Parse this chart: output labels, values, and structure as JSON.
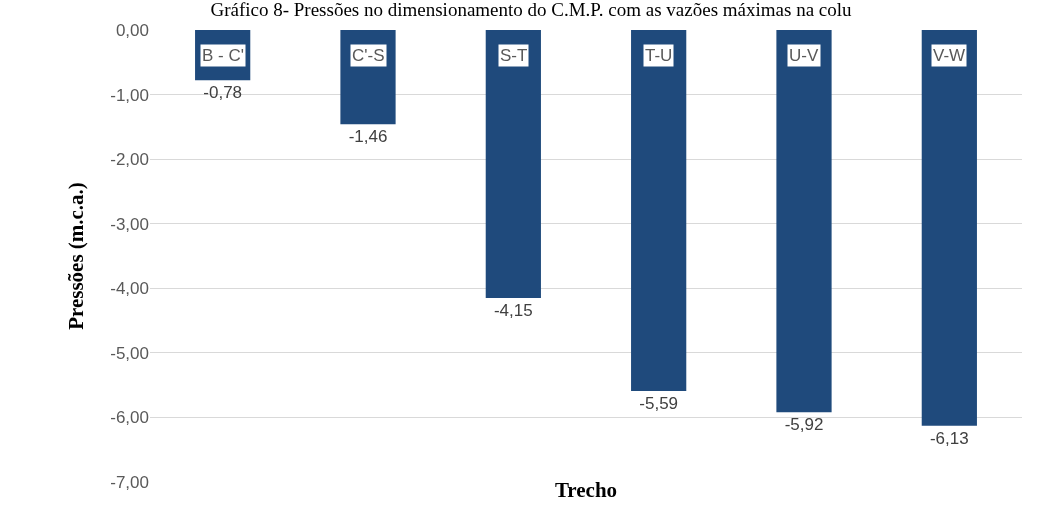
{
  "chart_data": {
    "type": "bar",
    "title": "Gráfico 8- Pressões no dimensionamento do C.M.P. com as vazões máximas na colu",
    "xlabel": "Trecho",
    "ylabel": "Pressões (m.c.a.)",
    "categories": [
      "B - C'",
      "C'-S",
      "S-T",
      "T-U",
      "U-V",
      "V-W"
    ],
    "values": [
      -0.78,
      -1.46,
      -4.15,
      -5.59,
      -5.92,
      -6.13
    ],
    "value_labels": [
      "-0,78",
      "-1,46",
      "-4,15",
      "-5,59",
      "-5,92",
      "-6,13"
    ],
    "color": "#1f4a7c",
    "ylim": [
      -7,
      0
    ],
    "yticks": [
      {
        "value": 0,
        "label": "0,00"
      },
      {
        "value": -1,
        "label": "-1,00"
      },
      {
        "value": -2,
        "label": "-2,00"
      },
      {
        "value": -3,
        "label": "-3,00"
      },
      {
        "value": -4,
        "label": "-4,00"
      },
      {
        "value": -5,
        "label": "-5,00"
      },
      {
        "value": -6,
        "label": "-6,00"
      },
      {
        "value": -7,
        "label": "-7,00"
      }
    ],
    "grid": "y"
  }
}
